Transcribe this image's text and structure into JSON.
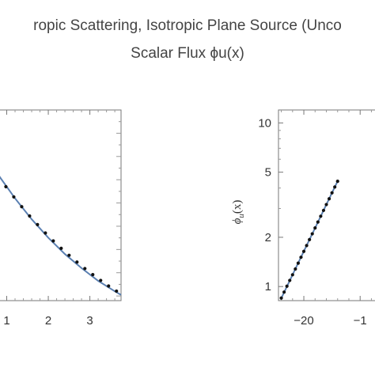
{
  "title_line1": "ropic Scattering, Isotropic Plane Source (Unco",
  "title_line2": "Scalar Flux ϕu(x)",
  "chart_data": [
    {
      "type": "line",
      "title": "",
      "xlabel": "",
      "ylabel": "",
      "x_ticks": [
        "1",
        "2",
        "3"
      ],
      "xlim": [
        0.8,
        3.75
      ],
      "ylim": [
        0.38,
        1.2
      ],
      "grid": false,
      "series": [
        {
          "style": "line",
          "color": "#5b80b2",
          "x": [
            0.8,
            1.2,
            1.6,
            2.0,
            2.4,
            2.8,
            3.2,
            3.6,
            3.75
          ],
          "y": [
            0.92,
            0.82,
            0.73,
            0.65,
            0.58,
            0.52,
            0.465,
            0.42,
            0.405
          ]
        },
        {
          "style": "points",
          "color": "#111111",
          "x": [
            0.8,
            0.98,
            1.17,
            1.36,
            1.55,
            1.74,
            1.93,
            2.12,
            2.31,
            2.5,
            2.69,
            2.88,
            3.07,
            3.26,
            3.45,
            3.64
          ],
          "y": [
            0.915,
            0.87,
            0.826,
            0.784,
            0.744,
            0.707,
            0.671,
            0.637,
            0.605,
            0.575,
            0.546,
            0.518,
            0.492,
            0.467,
            0.443,
            0.421
          ]
        }
      ]
    },
    {
      "type": "scatter",
      "title": "",
      "xlabel": "",
      "ylabel": "ϕu(x)",
      "y_scale": "log",
      "x_ticks": [
        "−20",
        "−1"
      ],
      "y_ticks": [
        "1",
        "2",
        "5",
        "10"
      ],
      "xlim": [
        -24.5,
        -6.8
      ],
      "ylim": [
        0.82,
        12
      ],
      "grid": false,
      "series": [
        {
          "style": "line",
          "color": "#5b80b2",
          "x": [
            -24,
            -22,
            -20,
            -18,
            -16,
            -14
          ],
          "y": [
            0.85,
            1.18,
            1.64,
            2.28,
            3.17,
            4.4
          ]
        },
        {
          "style": "points",
          "color": "#111111",
          "x": [
            -24,
            -23.5,
            -23,
            -22.5,
            -22,
            -21.5,
            -21,
            -20.5,
            -20,
            -19.5,
            -19,
            -18.5,
            -18,
            -17.5,
            -17,
            -16.5,
            -16,
            -15.5,
            -15,
            -14.5,
            -14
          ],
          "y": [
            0.85,
            0.925,
            1.005,
            1.09,
            1.18,
            1.28,
            1.39,
            1.51,
            1.64,
            1.78,
            1.935,
            2.1,
            2.28,
            2.48,
            2.69,
            2.92,
            3.17,
            3.44,
            3.74,
            4.06,
            4.4
          ]
        }
      ]
    }
  ]
}
